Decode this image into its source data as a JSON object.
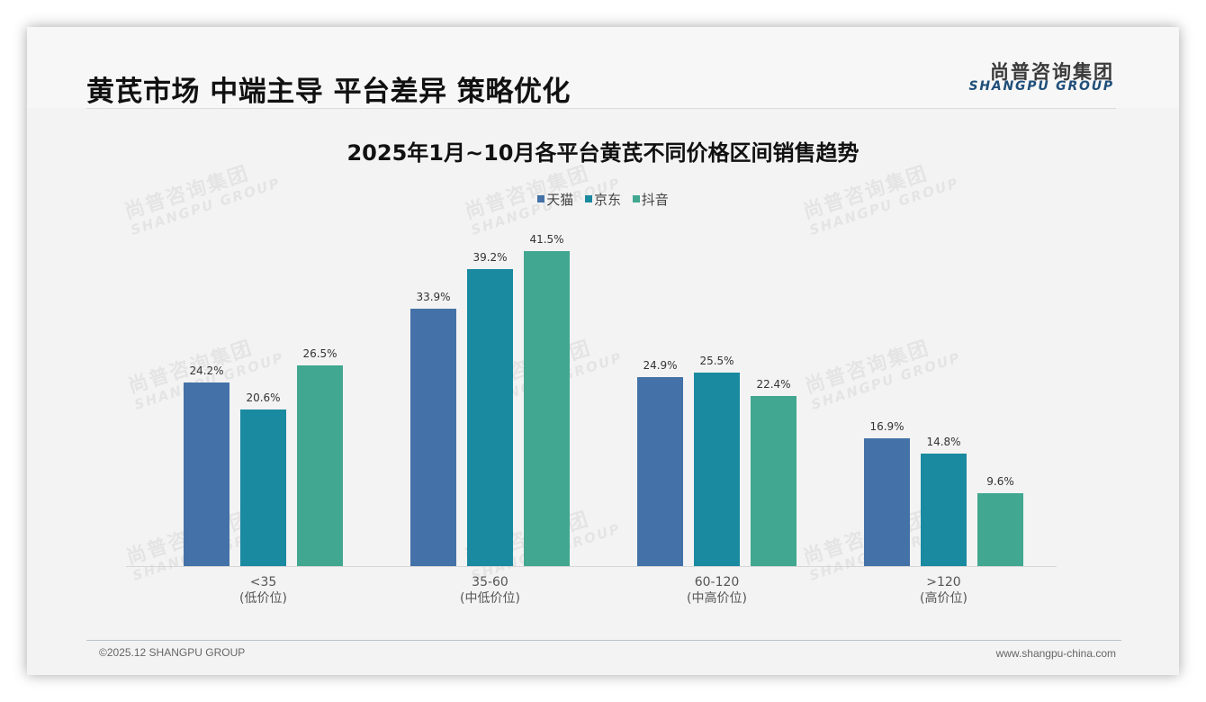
{
  "header": {
    "title": "黄芪市场 中端主导 平台差异 策略优化",
    "logo_cn": "尚普咨询集团",
    "logo_en": "SHANGPU GROUP"
  },
  "watermark": {
    "cn": "尚普咨询集团",
    "en": "SHANGPU GROUP"
  },
  "footer": {
    "copyright": "©2025.12 SHANGPU GROUP",
    "website": "www.shangpu-china.com"
  },
  "colors": {
    "tmall": "#4472a8",
    "jd": "#1a8aa0",
    "douyin": "#41a790"
  },
  "chart_data": {
    "type": "bar",
    "title": "2025年1月~10月各平台黄芪不同价格区间销售趋势",
    "xlabel": "",
    "ylabel": "",
    "unit": "%",
    "legend_position": "top",
    "grid": false,
    "categories": [
      "<35 (低价位)",
      "35-60 (中低价位)",
      "60-120 (中高价位)",
      ">120 (高价位)"
    ],
    "category_lines": [
      {
        "range": "<35",
        "tier": "(低价位)"
      },
      {
        "range": "35-60",
        "tier": "(中低价位)"
      },
      {
        "range": "60-120",
        "tier": "(中高价位)"
      },
      {
        "range": ">120",
        "tier": "(高价位)"
      }
    ],
    "series": [
      {
        "name": "天猫",
        "color": "#4472a8",
        "values": [
          24.2,
          33.9,
          24.9,
          16.9
        ],
        "labels": [
          "24.2%",
          "33.9%",
          "24.9%",
          "16.9%"
        ]
      },
      {
        "name": "京东",
        "color": "#1a8aa0",
        "values": [
          20.6,
          39.2,
          25.5,
          14.8
        ],
        "labels": [
          "20.6%",
          "39.2%",
          "25.5%",
          "14.8%"
        ]
      },
      {
        "name": "抖音",
        "color": "#41a790",
        "values": [
          26.5,
          41.5,
          22.4,
          9.6
        ],
        "labels": [
          "26.5%",
          "41.5%",
          "22.4%",
          "9.6%"
        ]
      }
    ],
    "ylim": [
      0,
      45
    ]
  }
}
